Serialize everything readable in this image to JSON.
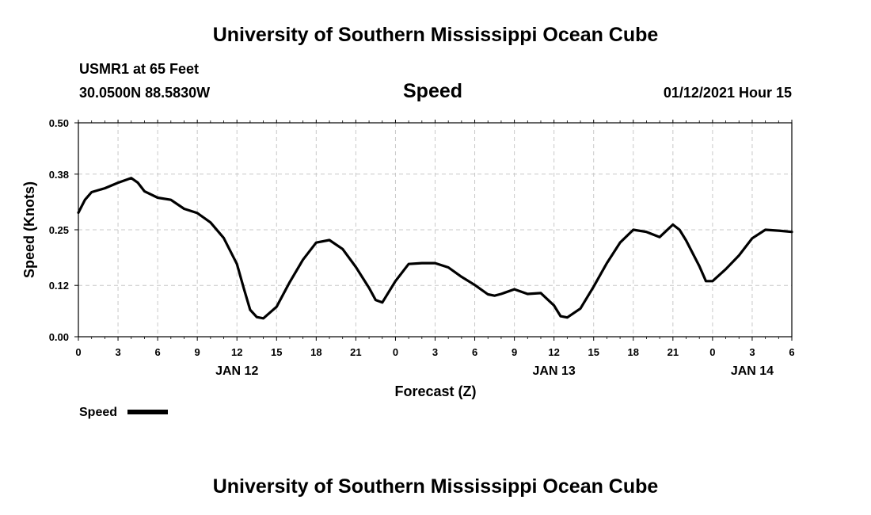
{
  "page": {
    "title_top": "University of Southern Mississippi Ocean Cube",
    "title_bottom": "University of Southern Mississippi Ocean Cube",
    "station": "USMR1 at 65 Feet",
    "coords": "30.0500N 88.5830W",
    "chart_name": "Speed",
    "timestamp": "01/12/2021 Hour 15"
  },
  "colors": {
    "line": "#000000",
    "grid": "#c8c8c8",
    "background": "#ffffff"
  },
  "chart_data": {
    "type": "line",
    "title": "Speed",
    "xlabel": "Forecast (Z)",
    "ylabel": "Speed (Knots)",
    "ylim": [
      0,
      0.5
    ],
    "y_ticks": [
      "0.00",
      "0.12",
      "0.25",
      "0.38",
      "0.50"
    ],
    "x_range_hours": [
      0,
      54
    ],
    "x_tick_labels": [
      "0",
      "3",
      "6",
      "9",
      "12",
      "15",
      "18",
      "21",
      "0",
      "3",
      "6",
      "9",
      "12",
      "15",
      "18",
      "21",
      "0",
      "3",
      "6"
    ],
    "date_labels": [
      {
        "label": "JAN 12",
        "hour": 12
      },
      {
        "label": "JAN 13",
        "hour": 36
      },
      {
        "label": "JAN 14",
        "hour": 51
      }
    ],
    "grid": true,
    "legend": {
      "position": "bottom-left",
      "entries": [
        "Speed"
      ]
    },
    "series": [
      {
        "name": "Speed",
        "x": [
          0,
          0.5,
          1,
          2,
          3,
          4,
          4.5,
          5,
          6,
          7,
          8,
          9,
          10,
          11,
          12,
          12.5,
          13,
          13.5,
          14,
          15,
          16,
          17,
          18,
          19,
          20,
          21,
          22,
          22.5,
          23,
          24,
          25,
          26,
          27,
          28,
          29,
          30,
          31,
          31.5,
          32,
          33,
          34,
          35,
          36,
          36.5,
          37,
          38,
          39,
          40,
          41,
          42,
          43,
          44,
          45,
          45.5,
          46,
          47,
          47.5,
          48,
          49,
          50,
          51,
          52,
          53,
          54
        ],
        "y": [
          0.29,
          0.32,
          0.338,
          0.347,
          0.36,
          0.371,
          0.36,
          0.34,
          0.325,
          0.32,
          0.299,
          0.289,
          0.267,
          0.231,
          0.17,
          0.115,
          0.063,
          0.046,
          0.043,
          0.07,
          0.128,
          0.18,
          0.22,
          0.226,
          0.205,
          0.163,
          0.114,
          0.086,
          0.08,
          0.13,
          0.17,
          0.172,
          0.172,
          0.162,
          0.14,
          0.121,
          0.099,
          0.096,
          0.1,
          0.111,
          0.1,
          0.102,
          0.073,
          0.048,
          0.045,
          0.066,
          0.117,
          0.172,
          0.22,
          0.25,
          0.245,
          0.233,
          0.262,
          0.25,
          0.225,
          0.165,
          0.13,
          0.13,
          0.158,
          0.19,
          0.23,
          0.25,
          0.248,
          0.245
        ]
      }
    ]
  }
}
